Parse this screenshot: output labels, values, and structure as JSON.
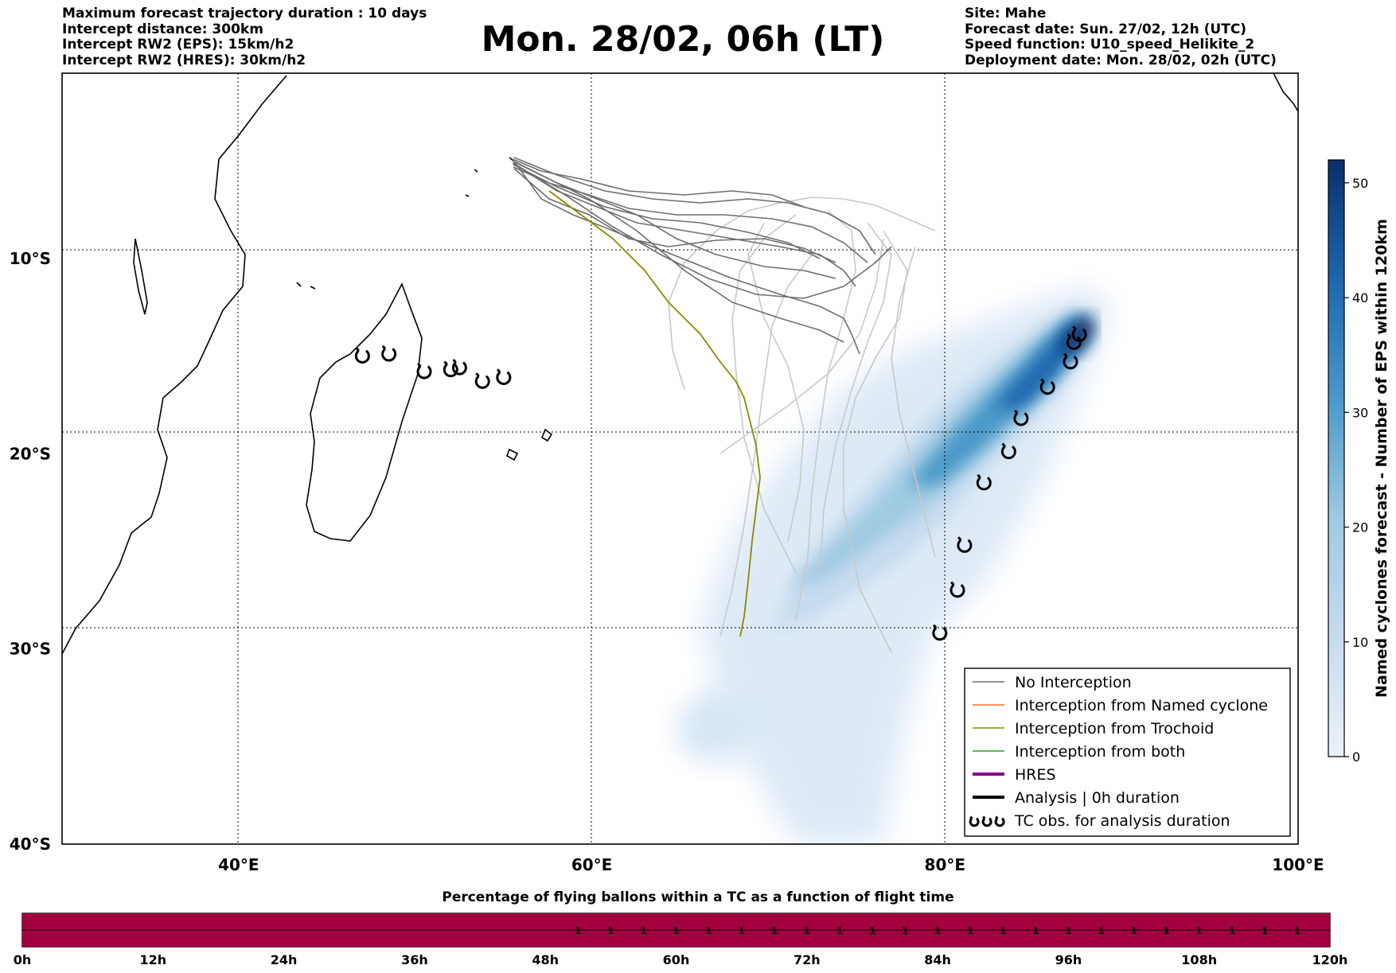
{
  "header": {
    "left": [
      "Maximum forecast trajectory duration : 10 days",
      "Intercept distance: 300km",
      "Intercept RW2 (EPS):  15km/h2",
      "Intercept RW2 (HRES): 30km/h2"
    ],
    "title": "Mon. 28/02, 06h (LT)",
    "right": [
      "Site: Mahe",
      "Forecast date: Sun. 27/02, 12h (UTC)",
      "Speed function: U10_speed_Helikite_2",
      "Deployment date: Mon. 28/02, 02h (UTC)"
    ]
  },
  "map": {
    "lon_range": [
      30,
      100
    ],
    "lat_range": [
      -40,
      -0.5
    ],
    "lon_ticks": [
      {
        "value": 40,
        "label": "40°E"
      },
      {
        "value": 60,
        "label": "60°E"
      },
      {
        "value": 80,
        "label": "80°E"
      },
      {
        "value": 100,
        "label": "100°E"
      }
    ],
    "lat_ticks": [
      {
        "value": -10,
        "label": "10°S"
      },
      {
        "value": -20,
        "label": "20°S"
      },
      {
        "value": -30,
        "label": "30°S"
      },
      {
        "value": -40,
        "label": "40°S"
      }
    ],
    "grid": true,
    "colors": {
      "no_interception": "#6e6e6e",
      "light_traj": "#c8c8c8",
      "trochoid": "#8a8a00",
      "named_cyclone": "#ff6b2b",
      "both": "#2ca02c",
      "hres": "#8b008b",
      "analysis": "#000000",
      "bar_fill": "#a3003f"
    }
  },
  "tc_obs": [
    [
      47,
      -15.0
    ],
    [
      48.5,
      -14.9
    ],
    [
      50.5,
      -15.8
    ],
    [
      52,
      -15.7
    ],
    [
      52.5,
      -15.6
    ],
    [
      53.8,
      -16.3
    ],
    [
      55,
      -16.1
    ],
    [
      79.7,
      -29.2
    ],
    [
      80.7,
      -27.0
    ],
    [
      81.1,
      -24.7
    ],
    [
      82.2,
      -21.5
    ],
    [
      83.6,
      -19.9
    ],
    [
      84.3,
      -18.2
    ],
    [
      85.8,
      -16.6
    ],
    [
      87.1,
      -15.3
    ],
    [
      87.3,
      -14.3
    ],
    [
      87.6,
      -13.9
    ]
  ],
  "legend": {
    "items": [
      {
        "label": "No Interception",
        "style": "thin",
        "color": "#6e6e6e"
      },
      {
        "label": "Interception from Named cyclone",
        "style": "thin",
        "color": "#ff6b2b"
      },
      {
        "label": "Interception from Trochoid",
        "style": "thin",
        "color": "#8a8a00"
      },
      {
        "label": "Interception from both",
        "style": "thin",
        "color": "#2ca02c"
      },
      {
        "label": "HRES",
        "style": "thick",
        "color": "#8b008b"
      },
      {
        "label": "Analysis | 0h duration",
        "style": "thick",
        "color": "#000000"
      },
      {
        "label": "TC obs. for analysis duration",
        "style": "tc",
        "color": "#000000"
      }
    ]
  },
  "colorbar": {
    "label": "Named cyclones forecast - Number of EPS within 120km",
    "range": [
      0,
      52
    ],
    "ticks": [
      0,
      10,
      20,
      30,
      40,
      50
    ],
    "colors": [
      "#deebf7",
      "#9ecae1",
      "#4292c6",
      "#2171b5",
      "#08306b"
    ]
  },
  "flight_bar": {
    "title": "Percentage of flying ballons within a TC as a function of flight time",
    "hour_labels": [
      "0h",
      "12h",
      "24h",
      "36h",
      "48h",
      "60h",
      "72h",
      "84h",
      "96h",
      "108h",
      "120h"
    ],
    "max_hours": 120,
    "filled_until_h": 48,
    "step_hours": 3,
    "values_after": "1"
  }
}
